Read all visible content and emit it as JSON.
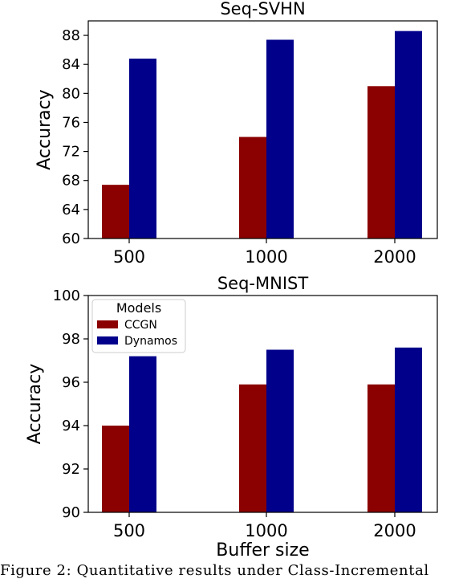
{
  "chart_data": [
    {
      "type": "bar",
      "title": "Seq-SVHN",
      "xlabel": "",
      "ylabel": "Accuracy",
      "categories": [
        "500",
        "1000",
        "2000"
      ],
      "series": [
        {
          "name": "CCGN",
          "values": [
            67.4,
            74.0,
            81.0
          ]
        },
        {
          "name": "Dynamos",
          "values": [
            84.8,
            87.4,
            88.6
          ]
        }
      ],
      "ylim": [
        60,
        90
      ],
      "yticks": [
        60,
        64,
        68,
        72,
        76,
        80,
        84,
        88
      ],
      "grid": false,
      "legend": null
    },
    {
      "type": "bar",
      "title": "Seq-MNIST",
      "xlabel": "Buffer size",
      "ylabel": "Accuracy",
      "categories": [
        "500",
        "1000",
        "2000"
      ],
      "series": [
        {
          "name": "CCGN",
          "values": [
            94.0,
            95.9,
            95.9
          ]
        },
        {
          "name": "Dynamos",
          "values": [
            97.2,
            97.5,
            97.6
          ]
        }
      ],
      "ylim": [
        90,
        100
      ],
      "yticks": [
        90,
        92,
        94,
        96,
        98,
        100
      ],
      "grid": false,
      "legend": {
        "title": "Models",
        "placement": "top-left",
        "entries": [
          "CCGN",
          "Dynamos"
        ]
      }
    }
  ],
  "colors": {
    "CCGN": "#8b0000",
    "Dynamos": "#00008b"
  },
  "caption": "Figure 2: Quantitative results under Class-Incremental"
}
